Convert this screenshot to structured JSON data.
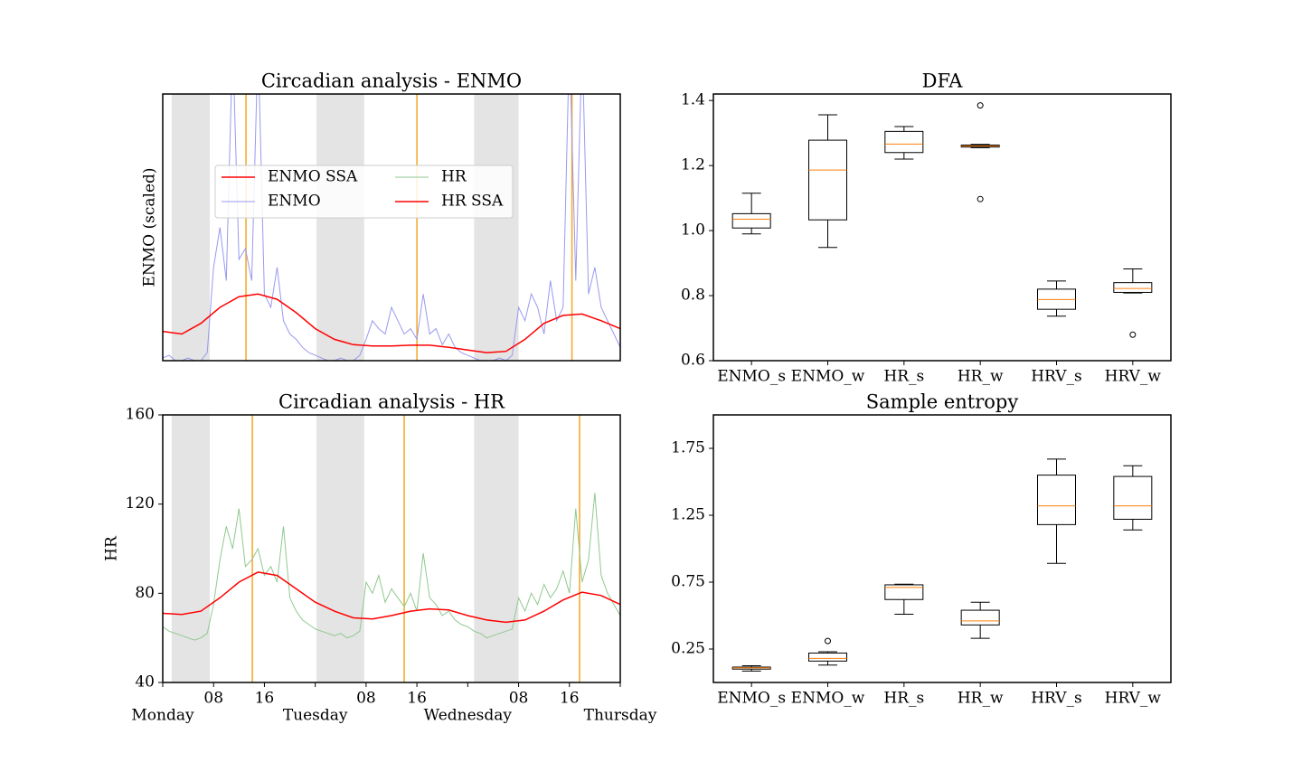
{
  "chart_data": [
    {
      "type": "line",
      "title": "Circadian analysis - ENMO",
      "ylabel": "ENMO (scaled)",
      "xlim": [
        0,
        72
      ],
      "ylim": [
        0,
        1
      ],
      "legend": true,
      "shaded_spans": [
        [
          1.4,
          7.4
        ],
        [
          24.2,
          31.7
        ],
        [
          49,
          56
        ]
      ],
      "acrophase_lines": [
        13.1,
        40,
        64.4
      ],
      "series": [
        {
          "name": "ENMO SSA",
          "color": "#ff0000",
          "linewidth": 1.5,
          "x": [
            0,
            3,
            6,
            9,
            12,
            15,
            18,
            21,
            24,
            27,
            30,
            33,
            36,
            39,
            42,
            45,
            48,
            51,
            54,
            57,
            60,
            63,
            66,
            69,
            72
          ],
          "values": [
            0.11,
            0.1,
            0.14,
            0.2,
            0.24,
            0.25,
            0.23,
            0.18,
            0.12,
            0.08,
            0.06,
            0.055,
            0.055,
            0.058,
            0.058,
            0.05,
            0.04,
            0.03,
            0.035,
            0.08,
            0.14,
            0.17,
            0.175,
            0.15,
            0.12
          ]
        },
        {
          "name": "ENMO",
          "color": "#9999f0",
          "linewidth": 1,
          "x": [
            0,
            1,
            2,
            3,
            4,
            5,
            6,
            7,
            8,
            9,
            10,
            11,
            12,
            13,
            14,
            15,
            16,
            17,
            18,
            19,
            20,
            21,
            22,
            23,
            24,
            25,
            26,
            27,
            28,
            29,
            30,
            31,
            32,
            33,
            34,
            35,
            36,
            37,
            38,
            39,
            40,
            41,
            42,
            43,
            44,
            45,
            46,
            47,
            48,
            49,
            50,
            51,
            52,
            53,
            54,
            55,
            56,
            57,
            58,
            59,
            60,
            61,
            62,
            63,
            64,
            65,
            66,
            67,
            68,
            69,
            70,
            71,
            72
          ],
          "values": [
            0.01,
            0.02,
            0.0,
            0.0,
            0.01,
            0.0,
            0.0,
            0.03,
            0.35,
            0.5,
            0.3,
            1.2,
            0.38,
            0.42,
            0.3,
            1.2,
            0.25,
            0.2,
            0.35,
            0.15,
            0.1,
            0.08,
            0.05,
            0.03,
            0.02,
            0.01,
            0.0,
            0.0,
            0.01,
            0.0,
            0.0,
            0.02,
            0.08,
            0.15,
            0.12,
            0.1,
            0.2,
            0.15,
            0.1,
            0.12,
            0.08,
            0.25,
            0.1,
            0.12,
            0.06,
            0.1,
            0.05,
            0.03,
            0.02,
            0.01,
            0.0,
            0.0,
            0.0,
            0.01,
            0.0,
            0.02,
            0.2,
            0.15,
            0.25,
            0.2,
            0.1,
            0.3,
            0.15,
            0.2,
            1.2,
            0.3,
            1.2,
            0.25,
            0.35,
            0.2,
            0.15,
            0.1,
            0.05
          ]
        }
      ]
    },
    {
      "type": "line",
      "title": "Circadian analysis - HR",
      "ylabel": "HR",
      "xlim": [
        0,
        72
      ],
      "ylim": [
        40,
        160
      ],
      "yticks": [
        40,
        80,
        120,
        160
      ],
      "xticks": [
        {
          "value": 8,
          "label": "08"
        },
        {
          "value": 16,
          "label": "16"
        },
        {
          "value": 32,
          "label": "08"
        },
        {
          "value": 40,
          "label": "16"
        },
        {
          "value": 56,
          "label": "08"
        },
        {
          "value": 64,
          "label": "16"
        }
      ],
      "xticks_major": [
        {
          "value": 0,
          "label": "Monday"
        },
        {
          "value": 24,
          "label": "Tuesday"
        },
        {
          "value": 48,
          "label": "Wednesday"
        },
        {
          "value": 72,
          "label": "Thursday"
        }
      ],
      "shaded_spans": [
        [
          1.4,
          7.4
        ],
        [
          24.2,
          31.7
        ],
        [
          49,
          56
        ]
      ],
      "acrophase_lines": [
        14.1,
        38,
        65.6
      ],
      "series": [
        {
          "name": "HR",
          "color": "#8fc98f",
          "linewidth": 1,
          "x": [
            0,
            1,
            2,
            3,
            4,
            5,
            6,
            7,
            8,
            9,
            10,
            11,
            12,
            13,
            14,
            15,
            16,
            17,
            18,
            19,
            20,
            21,
            22,
            23,
            24,
            25,
            26,
            27,
            28,
            29,
            30,
            31,
            32,
            33,
            34,
            35,
            36,
            37,
            38,
            39,
            40,
            41,
            42,
            43,
            44,
            45,
            46,
            47,
            48,
            49,
            50,
            51,
            52,
            53,
            54,
            55,
            56,
            57,
            58,
            59,
            60,
            61,
            62,
            63,
            64,
            65,
            66,
            67,
            68,
            69,
            70,
            71,
            72
          ],
          "values": [
            65,
            63,
            62,
            61,
            60,
            59,
            60,
            62,
            75,
            95,
            110,
            100,
            118,
            92,
            95,
            100,
            88,
            92,
            85,
            110,
            78,
            72,
            68,
            66,
            64,
            63,
            62,
            61,
            62,
            60,
            61,
            63,
            85,
            80,
            88,
            76,
            82,
            78,
            74,
            80,
            72,
            98,
            78,
            75,
            70,
            72,
            68,
            66,
            65,
            63,
            62,
            60,
            61,
            62,
            63,
            64,
            78,
            72,
            80,
            75,
            84,
            78,
            82,
            90,
            80,
            118,
            85,
            95,
            125,
            88,
            80,
            75,
            70
          ]
        },
        {
          "name": "HR SSA",
          "color": "#ff0000",
          "linewidth": 1.5,
          "x": [
            0,
            3,
            6,
            9,
            12,
            15,
            18,
            21,
            24,
            27,
            30,
            33,
            36,
            39,
            42,
            45,
            48,
            51,
            54,
            57,
            60,
            63,
            66,
            69,
            72
          ],
          "values": [
            71,
            70.5,
            72,
            78,
            85,
            89.5,
            88,
            82,
            76,
            72,
            69,
            68.5,
            70,
            72,
            73,
            72.5,
            70,
            68,
            67,
            68,
            72,
            77,
            80.5,
            79,
            75
          ]
        }
      ]
    },
    {
      "type": "box",
      "title": "DFA",
      "ylim": [
        0.6,
        1.42
      ],
      "yticks": [
        0.6,
        0.8,
        {
          "value": 1.0,
          "label": "1.0"
        },
        1.2,
        1.4
      ],
      "categories": [
        "ENMO_s",
        "ENMO_w",
        "HR_s",
        "HR_w",
        "HRV_s",
        "HRV_w"
      ],
      "box_color": "#000000",
      "median_color": "#ff7f0e",
      "boxes": [
        {
          "whislo": 0.99,
          "q1": 1.008,
          "med": 1.035,
          "q3": 1.052,
          "whishi": 1.115
        },
        {
          "whislo": 0.948,
          "q1": 1.033,
          "med": 1.186,
          "q3": 1.278,
          "whishi": 1.356
        },
        {
          "whislo": 1.22,
          "q1": 1.24,
          "med": 1.266,
          "q3": 1.305,
          "whishi": 1.32
        },
        {
          "whislo": 1.255,
          "q1": 1.257,
          "med": 1.26,
          "q3": 1.263,
          "whishi": 1.265,
          "fliers": [
            1.385,
            1.097
          ]
        },
        {
          "whislo": 0.737,
          "q1": 0.758,
          "med": 0.788,
          "q3": 0.82,
          "whishi": 0.845
        },
        {
          "whislo": 0.808,
          "q1": 0.81,
          "med": 0.822,
          "q3": 0.84,
          "whishi": 0.882,
          "fliers": [
            0.68
          ]
        }
      ]
    },
    {
      "type": "box",
      "title": "Sample entropy",
      "ylim": [
        0,
        2.0
      ],
      "yticks": [
        0.25,
        0.75,
        1.25,
        1.75
      ],
      "categories": [
        "ENMO_s",
        "ENMO_w",
        "HR_s",
        "HR_w",
        "HRV_s",
        "HRV_w"
      ],
      "box_color": "#000000",
      "median_color": "#ff7f0e",
      "boxes": [
        {
          "whislo": 0.085,
          "q1": 0.1,
          "med": 0.11,
          "q3": 0.115,
          "whishi": 0.125
        },
        {
          "whislo": 0.13,
          "q1": 0.16,
          "med": 0.18,
          "q3": 0.22,
          "whishi": 0.23,
          "fliers": [
            0.31
          ]
        },
        {
          "whislo": 0.51,
          "q1": 0.62,
          "med": 0.71,
          "q3": 0.73,
          "whishi": 0.735
        },
        {
          "whislo": 0.33,
          "q1": 0.43,
          "med": 0.46,
          "q3": 0.54,
          "whishi": 0.6
        },
        {
          "whislo": 0.89,
          "q1": 1.18,
          "med": 1.32,
          "q3": 1.55,
          "whishi": 1.67
        },
        {
          "whislo": 1.14,
          "q1": 1.22,
          "med": 1.32,
          "q3": 1.54,
          "whishi": 1.62
        }
      ]
    }
  ]
}
